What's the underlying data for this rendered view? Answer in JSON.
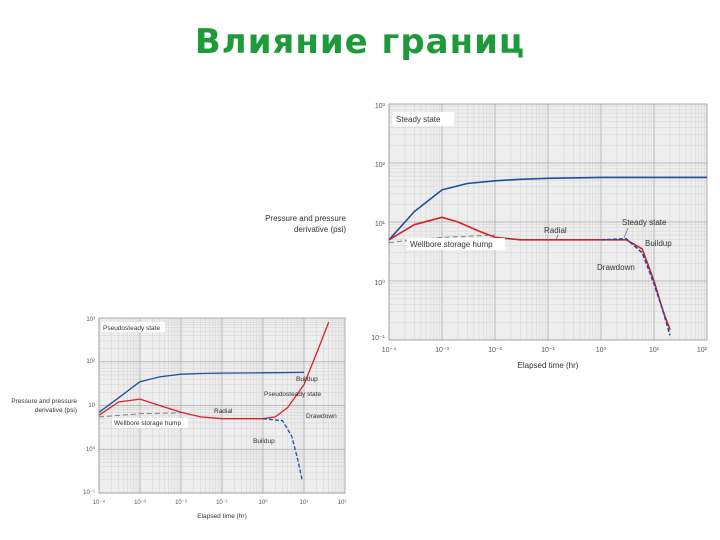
{
  "slide": {
    "title": "Влияние границ"
  },
  "colors": {
    "title": "#1f9a3a",
    "pressure": "#1f4e9c",
    "derivative_drawdown": "#d6202a",
    "derivative_buildup": "#1f4e9c",
    "grid": "#cccccc",
    "plot_bg": "#eeeeee"
  },
  "chart_data": [
    {
      "type": "line",
      "scale": "log-log",
      "xlabel": "Elapsed time (hr)",
      "ylabel": [
        "Pressure and pressure",
        "derivative (psi)"
      ],
      "x_ticks": [
        "10⁻⁴",
        "10⁻³",
        "10⁻²",
        "10⁻¹",
        "10⁰",
        "10¹",
        "10²"
      ],
      "y_ticks": [
        "10³",
        "10²",
        "10¹",
        "10⁰",
        "10⁻¹"
      ],
      "xlim": [
        0.0001,
        100
      ],
      "ylim": [
        0.1,
        1000
      ],
      "annotations": [
        "Steady state",
        "Radial",
        "Wellbore storage hump",
        "Steady state",
        "Buildup",
        "Drawdown"
      ],
      "series": [
        {
          "role": "pressure",
          "x": [
            0.0001,
            0.0003,
            0.001,
            0.003,
            0.01,
            0.03,
            0.1,
            1,
            10,
            100
          ],
          "y": [
            5,
            15,
            35,
            45,
            50,
            53,
            55,
            57,
            57,
            57
          ]
        },
        {
          "role": "derivative-drawdown",
          "x": [
            0.0001,
            0.0003,
            0.001,
            0.002,
            0.005,
            0.01,
            0.03,
            0.1,
            1,
            3,
            6,
            10,
            15,
            20
          ],
          "y": [
            5,
            9,
            12,
            10,
            7,
            5.5,
            5,
            5,
            5,
            5,
            3.5,
            1,
            0.3,
            0.15
          ]
        },
        {
          "role": "derivative-buildup",
          "x": [
            1,
            3,
            6,
            10,
            15,
            20
          ],
          "y": [
            5,
            5.2,
            3,
            0.9,
            0.3,
            0.12
          ]
        },
        {
          "role": "wellbore-dashed",
          "x": [
            0.0001,
            0.001,
            0.01
          ],
          "y": [
            4.5,
            5.5,
            6
          ]
        }
      ]
    },
    {
      "type": "line",
      "scale": "log-log",
      "xlabel": "Elapsed time (hr)",
      "ylabel": [
        "Pressure and pressure",
        "derivative (psi)"
      ],
      "x_ticks": [
        "10⁻⁴",
        "10⁻³",
        "10⁻²",
        "10⁻¹",
        "10⁰",
        "10¹",
        "10²"
      ],
      "y_ticks": [
        "10³",
        "10²",
        "10",
        "10⁰",
        "10⁻¹"
      ],
      "xlim": [
        0.0001,
        100
      ],
      "ylim": [
        0.1,
        1000
      ],
      "annotations": [
        "Pseudosteady state",
        "Buildup",
        "Pseudosteady state",
        "Radial",
        "Drawdown",
        "Wellbore storage hump",
        "Buildup"
      ],
      "series": [
        {
          "role": "pressure",
          "x": [
            0.0001,
            0.0003,
            0.001,
            0.003,
            0.01,
            0.03,
            0.1,
            1,
            10
          ],
          "y": [
            7,
            15,
            35,
            45,
            52,
            54,
            55,
            56,
            57
          ]
        },
        {
          "role": "derivative-drawdown",
          "x": [
            0.0001,
            0.0003,
            0.001,
            0.003,
            0.01,
            0.03,
            0.1,
            1,
            2,
            4,
            10,
            20,
            40
          ],
          "y": [
            6,
            12,
            14,
            10,
            7,
            5.5,
            5,
            5,
            5.5,
            9,
            30,
            150,
            800
          ]
        },
        {
          "role": "derivative-buildup",
          "x": [
            1,
            3,
            5,
            7,
            9
          ],
          "y": [
            5,
            4.5,
            2,
            0.6,
            0.2
          ]
        },
        {
          "role": "wellbore-dashed",
          "x": [
            0.0001,
            0.001,
            0.01
          ],
          "y": [
            5.5,
            6.5,
            6.8
          ]
        }
      ]
    }
  ]
}
